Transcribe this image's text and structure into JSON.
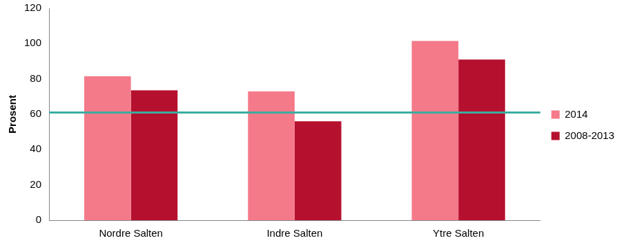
{
  "chart_data": {
    "type": "bar",
    "y_label": "Prosent",
    "categories": [
      "Nordre Salten",
      "Indre Salten",
      "Ytre Salten"
    ],
    "series": [
      {
        "name": "2014",
        "color": "#f47a8a",
        "values": [
          81.5,
          73,
          101.5
        ]
      },
      {
        "name": "2008-2013",
        "color": "#b5112e",
        "values": [
          73.5,
          56,
          91
        ]
      }
    ],
    "reference_line": {
      "value": 61,
      "color": "#3aada0"
    },
    "ylim": [
      0,
      120
    ],
    "yticks": [
      0,
      20,
      40,
      60,
      80,
      100,
      120
    ],
    "grid": false,
    "legend": "right"
  }
}
